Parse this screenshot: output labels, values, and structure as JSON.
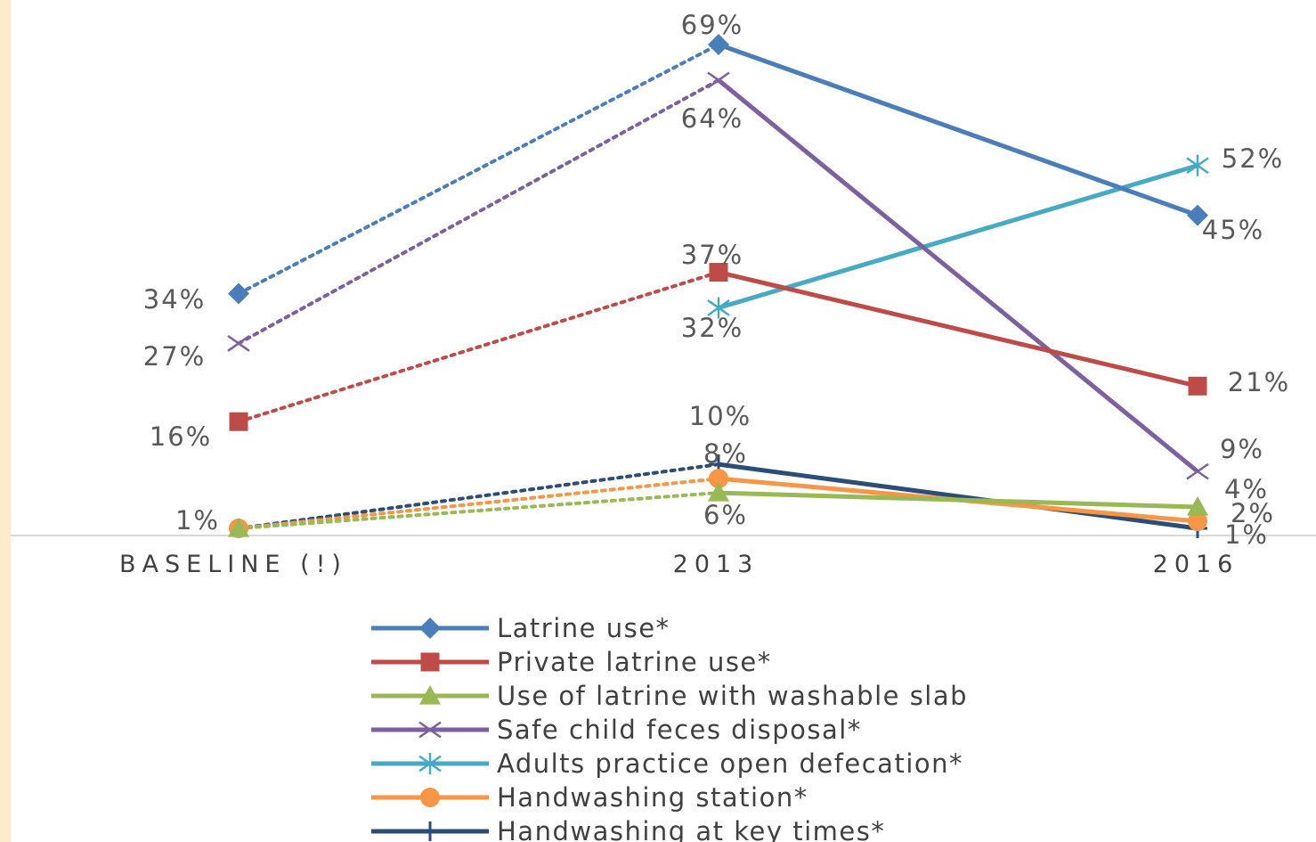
{
  "chart_data": {
    "type": "line",
    "categories": [
      "BASELINE (!)",
      "2013",
      "2016"
    ],
    "ylim": [
      0,
      75
    ],
    "grid": false,
    "legend_position": "bottom",
    "series": [
      {
        "name": "Latrine use*",
        "values": [
          34,
          69,
          45
        ],
        "labels": [
          "34%",
          "69%",
          "45%"
        ],
        "color": "#4a7ebb",
        "marker": "diamond"
      },
      {
        "name": "Private latrine use*",
        "values": [
          16,
          37,
          21
        ],
        "labels": [
          "16%",
          "37%",
          "21%"
        ],
        "color": "#be4b48",
        "marker": "square"
      },
      {
        "name": "Use of latrine with washable slab",
        "values": [
          1,
          6,
          4
        ],
        "labels": [
          "",
          "6%",
          "4%"
        ],
        "color": "#98b954",
        "marker": "triangle"
      },
      {
        "name": "Safe child feces disposal*",
        "values": [
          27,
          64,
          9
        ],
        "labels": [
          "27%",
          "64%",
          "9%"
        ],
        "color": "#7d60a0",
        "marker": "x"
      },
      {
        "name": "Adults practice open defecation*",
        "values": [
          null,
          32,
          52
        ],
        "labels": [
          "",
          "32%",
          "52%"
        ],
        "color": "#46aac5",
        "marker": "asterisk"
      },
      {
        "name": "Handwashing station*",
        "values": [
          1,
          8,
          2
        ],
        "labels": [
          "1%",
          "8%",
          "2%"
        ],
        "color": "#f79646",
        "marker": "circle"
      },
      {
        "name": "Handwashing at key times*",
        "values": [
          1,
          10,
          1
        ],
        "labels": [
          "",
          "10%",
          "1%"
        ],
        "color": "#2c4d75",
        "marker": "plus"
      }
    ]
  }
}
